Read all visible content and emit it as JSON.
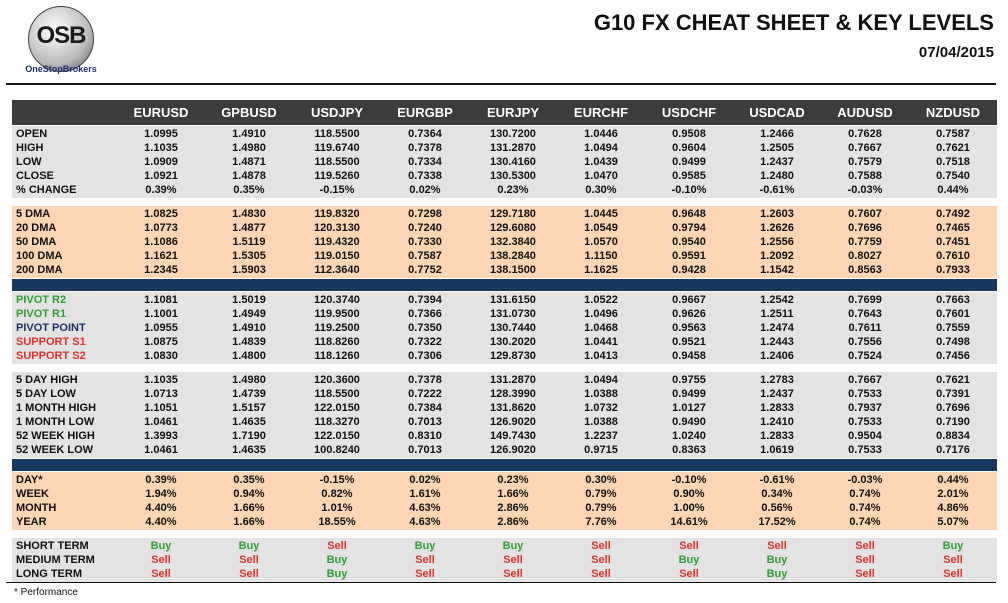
{
  "header": {
    "logo_mark": "OSB",
    "logo_name": "OneStopBrokers",
    "title": "G10 FX CHEAT SHEET & KEY LEVELS",
    "date": "07/04/2015"
  },
  "table": {
    "columns": [
      "EURUSD",
      "GPBUSD",
      "USDJPY",
      "EURGBP",
      "EURJPY",
      "EURCHF",
      "USDCHF",
      "USDCAD",
      "AUDUSD",
      "NZDUSD"
    ],
    "sections": [
      {
        "style": "gray",
        "rows": [
          {
            "label": "OPEN",
            "values": [
              "1.0995",
              "1.4910",
              "118.5500",
              "0.7364",
              "130.7200",
              "1.0446",
              "0.9508",
              "1.2466",
              "0.7628",
              "0.7587"
            ]
          },
          {
            "label": "HIGH",
            "values": [
              "1.1035",
              "1.4980",
              "119.6740",
              "0.7378",
              "131.2870",
              "1.0494",
              "0.9604",
              "1.2505",
              "0.7667",
              "0.7621"
            ]
          },
          {
            "label": "LOW",
            "values": [
              "1.0909",
              "1.4871",
              "118.5500",
              "0.7334",
              "130.4160",
              "1.0439",
              "0.9499",
              "1.2437",
              "0.7579",
              "0.7518"
            ]
          },
          {
            "label": "CLOSE",
            "values": [
              "1.0921",
              "1.4878",
              "119.5260",
              "0.7338",
              "130.5300",
              "1.0470",
              "0.9585",
              "1.2480",
              "0.7588",
              "0.7540"
            ]
          },
          {
            "label": "% CHANGE",
            "values": [
              "0.39%",
              "0.35%",
              "-0.15%",
              "0.02%",
              "0.23%",
              "0.30%",
              "-0.10%",
              "-0.61%",
              "-0.03%",
              "0.44%"
            ]
          }
        ]
      },
      {
        "style": "peach",
        "rows": [
          {
            "label": "5 DMA",
            "values": [
              "1.0825",
              "1.4830",
              "119.8320",
              "0.7298",
              "129.7180",
              "1.0445",
              "0.9648",
              "1.2603",
              "0.7607",
              "0.7492"
            ]
          },
          {
            "label": "20 DMA",
            "values": [
              "1.0773",
              "1.4877",
              "120.3130",
              "0.7240",
              "129.6080",
              "1.0549",
              "0.9794",
              "1.2626",
              "0.7696",
              "0.7465"
            ]
          },
          {
            "label": "50 DMA",
            "values": [
              "1.1086",
              "1.5119",
              "119.4320",
              "0.7330",
              "132.3840",
              "1.0570",
              "0.9540",
              "1.2556",
              "0.7759",
              "0.7451"
            ]
          },
          {
            "label": "100 DMA",
            "values": [
              "1.1621",
              "1.5305",
              "119.0150",
              "0.7587",
              "138.2840",
              "1.1150",
              "0.9591",
              "1.2092",
              "0.8027",
              "0.7610"
            ]
          },
          {
            "label": "200 DMA",
            "values": [
              "1.2345",
              "1.5903",
              "112.3640",
              "0.7752",
              "138.1500",
              "1.1625",
              "0.9428",
              "1.1542",
              "0.8563",
              "0.7933"
            ]
          }
        ]
      },
      {
        "style": "divider",
        "rows": []
      },
      {
        "style": "gray",
        "rows": [
          {
            "label": "PIVOT R2",
            "label_color": "#2e9e2e",
            "values": [
              "1.1081",
              "1.5019",
              "120.3740",
              "0.7394",
              "131.6150",
              "1.0522",
              "0.9667",
              "1.2542",
              "0.7699",
              "0.7663"
            ]
          },
          {
            "label": "PIVOT R1",
            "label_color": "#2e9e2e",
            "values": [
              "1.1001",
              "1.4949",
              "119.9500",
              "0.7366",
              "131.0730",
              "1.0496",
              "0.9626",
              "1.2511",
              "0.7643",
              "0.7601"
            ]
          },
          {
            "label": "PIVOT POINT",
            "label_color": "#1f2f6b",
            "values": [
              "1.0955",
              "1.4910",
              "119.2500",
              "0.7350",
              "130.7440",
              "1.0468",
              "0.9563",
              "1.2474",
              "0.7611",
              "0.7559"
            ]
          },
          {
            "label": "SUPPORT S1",
            "label_color": "#e0302a",
            "values": [
              "1.0875",
              "1.4839",
              "118.8260",
              "0.7322",
              "130.2020",
              "1.0441",
              "0.9521",
              "1.2443",
              "0.7556",
              "0.7498"
            ]
          },
          {
            "label": "SUPPORT S2",
            "label_color": "#e0302a",
            "values": [
              "1.0830",
              "1.4800",
              "118.1260",
              "0.7306",
              "129.8730",
              "1.0413",
              "0.9458",
              "1.2406",
              "0.7524",
              "0.7456"
            ]
          }
        ]
      },
      {
        "style": "gray",
        "rows": [
          {
            "label": "5 DAY HIGH",
            "values": [
              "1.1035",
              "1.4980",
              "120.3600",
              "0.7378",
              "131.2870",
              "1.0494",
              "0.9755",
              "1.2783",
              "0.7667",
              "0.7621"
            ]
          },
          {
            "label": "5 DAY LOW",
            "values": [
              "1.0713",
              "1.4739",
              "118.5500",
              "0.7222",
              "128.3990",
              "1.0388",
              "0.9499",
              "1.2437",
              "0.7533",
              "0.7391"
            ]
          },
          {
            "label": "1 MONTH HIGH",
            "values": [
              "1.1051",
              "1.5157",
              "122.0150",
              "0.7384",
              "131.8620",
              "1.0732",
              "1.0127",
              "1.2833",
              "0.7937",
              "0.7696"
            ]
          },
          {
            "label": "1 MONTH LOW",
            "values": [
              "1.0461",
              "1.4635",
              "118.3270",
              "0.7013",
              "126.9020",
              "1.0388",
              "0.9490",
              "1.2410",
              "0.7533",
              "0.7190"
            ]
          },
          {
            "label": "52 WEEK HIGH",
            "values": [
              "1.3993",
              "1.7190",
              "122.0150",
              "0.8310",
              "149.7430",
              "1.2237",
              "1.0240",
              "1.2833",
              "0.9504",
              "0.8834"
            ]
          },
          {
            "label": "52 WEEK LOW",
            "values": [
              "1.0461",
              "1.4635",
              "100.8240",
              "0.7013",
              "126.9020",
              "0.9715",
              "0.8363",
              "1.0619",
              "0.7533",
              "0.7176"
            ]
          }
        ]
      },
      {
        "style": "divider",
        "rows": []
      },
      {
        "style": "peach",
        "rows": [
          {
            "label": "DAY*",
            "values": [
              "0.39%",
              "0.35%",
              "-0.15%",
              "0.02%",
              "0.23%",
              "0.30%",
              "-0.10%",
              "-0.61%",
              "-0.03%",
              "0.44%"
            ]
          },
          {
            "label": "WEEK",
            "values": [
              "1.94%",
              "0.94%",
              "0.82%",
              "1.61%",
              "1.66%",
              "0.79%",
              "0.90%",
              "0.34%",
              "0.74%",
              "2.01%"
            ]
          },
          {
            "label": "MONTH",
            "values": [
              "4.40%",
              "1.66%",
              "1.01%",
              "4.63%",
              "2.86%",
              "0.79%",
              "1.00%",
              "0.56%",
              "0.74%",
              "4.86%"
            ]
          },
          {
            "label": "YEAR",
            "values": [
              "4.40%",
              "1.66%",
              "18.55%",
              "4.63%",
              "2.86%",
              "7.76%",
              "14.61%",
              "17.52%",
              "0.74%",
              "5.07%"
            ]
          }
        ]
      },
      {
        "style": "gray",
        "rows": [
          {
            "label": "SHORT TERM",
            "values": [
              "Buy",
              "Buy",
              "Sell",
              "Buy",
              "Buy",
              "Sell",
              "Sell",
              "Sell",
              "Sell",
              "Buy"
            ],
            "colors": [
              "#2e9e2e",
              "#2e9e2e",
              "#e0302a",
              "#2e9e2e",
              "#2e9e2e",
              "#e0302a",
              "#e0302a",
              "#e0302a",
              "#e0302a",
              "#2e9e2e"
            ]
          },
          {
            "label": "MEDIUM TERM",
            "values": [
              "Sell",
              "Sell",
              "Buy",
              "Sell",
              "Sell",
              "Sell",
              "Buy",
              "Buy",
              "Sell",
              "Sell"
            ],
            "colors": [
              "#e0302a",
              "#e0302a",
              "#2e9e2e",
              "#e0302a",
              "#e0302a",
              "#e0302a",
              "#2e9e2e",
              "#2e9e2e",
              "#e0302a",
              "#e0302a"
            ]
          },
          {
            "label": "LONG TERM",
            "values": [
              "Sell",
              "Sell",
              "Buy",
              "Sell",
              "Sell",
              "Sell",
              "Sell",
              "Buy",
              "Sell",
              "Sell"
            ],
            "colors": [
              "#e0302a",
              "#e0302a",
              "#2e9e2e",
              "#e0302a",
              "#e0302a",
              "#e0302a",
              "#e0302a",
              "#2e9e2e",
              "#e0302a",
              "#e0302a"
            ]
          }
        ]
      }
    ]
  },
  "footnote": "* Performance"
}
